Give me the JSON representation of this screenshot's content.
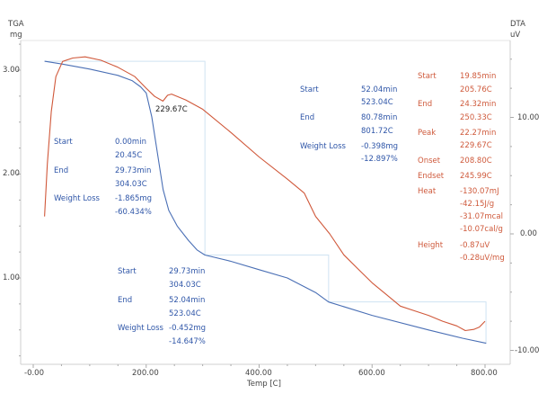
{
  "chart_data": {
    "type": "line",
    "xlabel": "Temp  [C]",
    "left_axis": {
      "label": "TGA",
      "unit": "mg",
      "ticks": [
        "3.00",
        "2.00",
        "1.00"
      ],
      "tick_values": [
        3,
        2,
        1
      ],
      "range": [
        0.1,
        3.29
      ]
    },
    "right_axis": {
      "label": "DTA",
      "unit": "uV",
      "ticks": [
        "10.00",
        "0.00",
        "-10.00"
      ],
      "tick_values": [
        10,
        0,
        -10
      ],
      "range": [
        -11.1,
        16.7
      ]
    },
    "x_ticks": [
      "-0.00",
      "200.00",
      "400.00",
      "600.00",
      "800.00"
    ],
    "x_tick_values": [
      0,
      200,
      400,
      600,
      800
    ],
    "xlim": [
      -22,
      845
    ],
    "grid": false,
    "series": [
      {
        "name": "TGA",
        "axis": "left",
        "color": "#4a6fb5",
        "x": [
          20,
          50,
          100,
          150,
          175,
          190,
          200,
          210,
          220,
          230,
          240,
          255,
          275,
          290,
          304,
          350,
          400,
          450,
          500,
          523,
          600,
          700,
          760,
          802
        ],
        "y": [
          3.086,
          3.06,
          3.01,
          2.95,
          2.9,
          2.84,
          2.78,
          2.55,
          2.2,
          1.85,
          1.65,
          1.5,
          1.36,
          1.27,
          1.221,
          1.16,
          1.08,
          1.0,
          0.86,
          0.769,
          0.64,
          0.5,
          0.42,
          0.371
        ]
      },
      {
        "name": "DTA",
        "axis": "right",
        "color": "#d0583a",
        "x": [
          20,
          25,
          32,
          40,
          52,
          70,
          92,
          120,
          150,
          180,
          200,
          215,
          229.67,
          238,
          245,
          270,
          300,
          350,
          400,
          450,
          480,
          500,
          525,
          550,
          575,
          600,
          625,
          650,
          675,
          700,
          725,
          750,
          765,
          780,
          790,
          800
        ],
        "y": [
          1.5,
          6,
          10.5,
          13.5,
          14.8,
          15.1,
          15.2,
          14.9,
          14.3,
          13.5,
          12.5,
          11.8,
          11.4,
          11.9,
          12.0,
          11.5,
          10.7,
          8.7,
          6.6,
          4.7,
          3.5,
          1.5,
          0.0,
          -1.8,
          -3.0,
          -4.2,
          -5.2,
          -6.2,
          -6.6,
          -7.0,
          -7.5,
          -7.9,
          -8.3,
          -8.2,
          -8.0,
          -7.5
        ]
      }
    ],
    "steps": [
      {
        "from": 20.45,
        "to": 304.03,
        "mass": 3.086
      },
      {
        "from": 304.03,
        "to": 523.04,
        "mass": 1.221
      },
      {
        "from": 523.04,
        "to": 801.72,
        "mass": 0.769
      },
      {
        "from": 801.72,
        "to": 801.72,
        "mass": 0.371
      }
    ],
    "peak_label": "229.67C",
    "annotations": {
      "tga1": {
        "start_label": "Start",
        "start_min": "0.00min",
        "start_c": "20.45C",
        "end_label": "End",
        "end_min": "29.73min",
        "end_c": "304.03C",
        "wl_label": "Weight Loss",
        "wl_mg": "-1.865mg",
        "wl_pct": "-60.434%"
      },
      "tga2": {
        "start_label": "Start",
        "start_min": "29.73min",
        "start_c": "304.03C",
        "end_label": "End",
        "end_min": "52.04min",
        "end_c": "523.04C",
        "wl_label": "Weight Loss",
        "wl_mg": "-0.452mg",
        "wl_pct": "-14.647%"
      },
      "tga3": {
        "start_label": "Start",
        "start_min": "52.04min",
        "start_c": "523.04C",
        "end_label": "End",
        "end_min": "80.78min",
        "end_c": "801.72C",
        "wl_label": "Weight Loss",
        "wl_mg": "-0.398mg",
        "wl_pct": "-12.897%"
      },
      "dta": {
        "start_label": "Start",
        "start_min": "19.85min",
        "start_c": "205.76C",
        "end_label": "End",
        "end_min": "24.32min",
        "end_c": "250.33C",
        "peak_label": "Peak",
        "peak_min": "22.27min",
        "peak_c": "229.67C",
        "onset_label": "Onset",
        "onset": "208.80C",
        "endset_label": "Endset",
        "endset": "245.99C",
        "heat_label": "Heat",
        "heat_mj": "-130.07mJ",
        "heat_jg": "-42.15J/g",
        "heat_mcal": "-31.07mcal",
        "heat_calg": "-10.07cal/g",
        "height_label": "Height",
        "height_uv": "-0.87uV",
        "height_uvmg": "-0.28uV/mg"
      }
    }
  }
}
